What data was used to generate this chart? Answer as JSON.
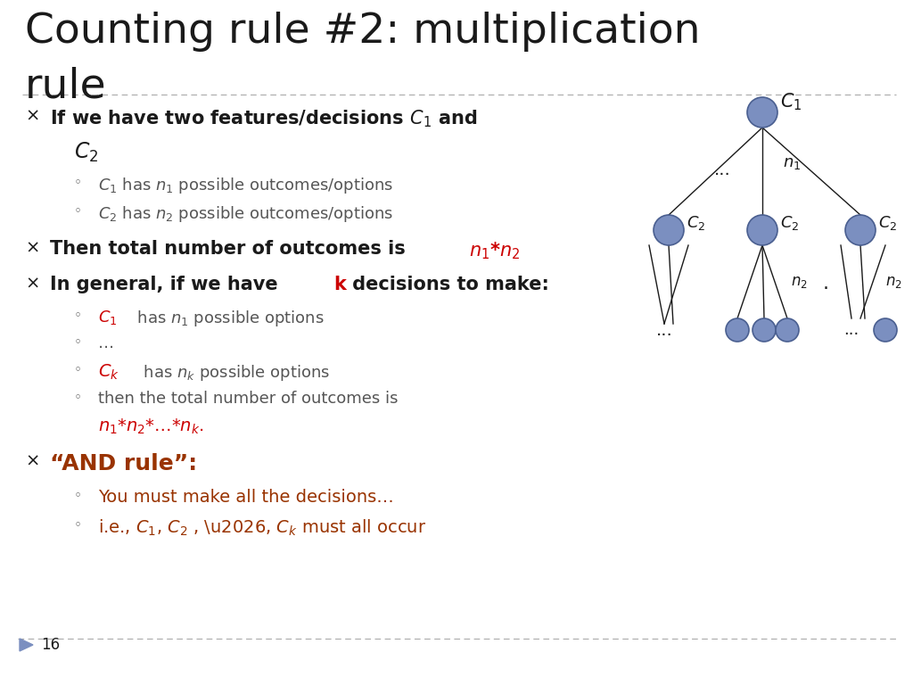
{
  "bg_color": "#ffffff",
  "title_line1": "Counting rule #2: multiplication",
  "title_line2": "rule",
  "title_fontsize": 34,
  "black": "#1a1a1a",
  "gray": "#555555",
  "light_gray": "#999999",
  "red": "#cc0000",
  "dark_red": "#993300",
  "node_color": "#7b8fc0",
  "node_edge": "#4a5f90",
  "slide_number": "16",
  "dashed_line_color": "#aaaaaa"
}
